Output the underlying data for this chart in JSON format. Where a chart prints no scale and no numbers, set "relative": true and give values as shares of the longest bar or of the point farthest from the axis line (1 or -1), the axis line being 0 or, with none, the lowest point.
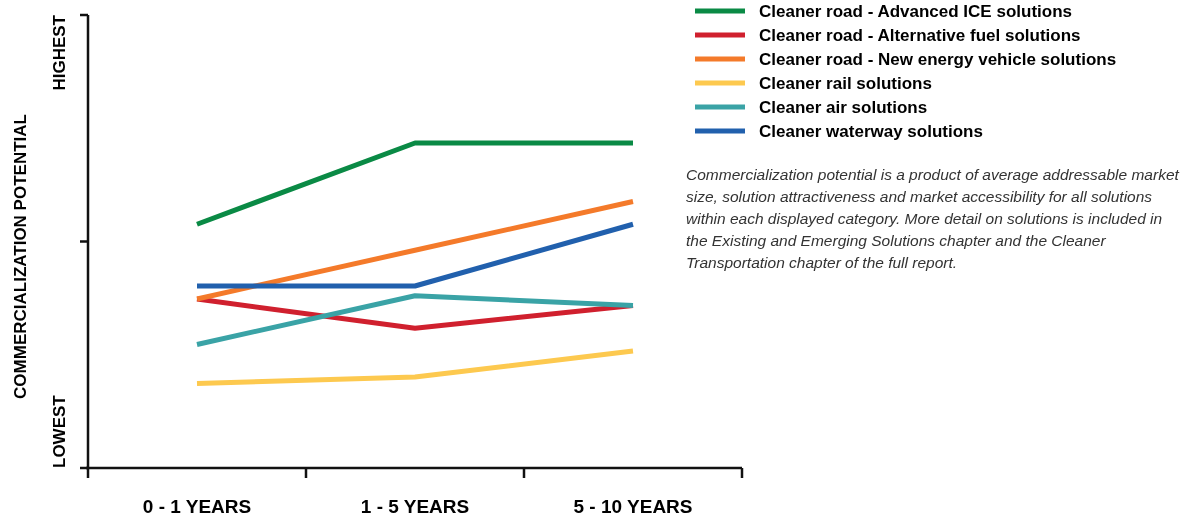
{
  "chart_data": {
    "type": "line",
    "relative": true,
    "ylabel": "COMMERCIALIZATION POTENTIAL",
    "categories": [
      "0 - 1 YEARS",
      "1 -  5 YEARS",
      "5 - 10 YEARS"
    ],
    "series": [
      {
        "name": "Cleaner road - Advanced ICE solutions",
        "color": "#0a8a45",
        "values": [
          0.75,
          1,
          1
        ]
      },
      {
        "name": "Cleaner road - Alternative fuel solutions",
        "color": "#d0202e",
        "values": [
          0.52,
          0.43,
          0.5
        ]
      },
      {
        "name": "Cleaner road - New energy vehicle solutions",
        "color": "#f47a2a",
        "values": [
          0.52,
          0.67,
          0.82
        ]
      },
      {
        "name": "Cleaner rail solutions",
        "color": "#fdc94f",
        "values": [
          0.26,
          0.28,
          0.36
        ]
      },
      {
        "name": "Cleaner air solutions",
        "color": "#3aa3a6",
        "values": [
          0.38,
          0.53,
          0.5
        ]
      },
      {
        "name": "Cleaner waterway solutions",
        "color": "#2160ad",
        "values": [
          0.56,
          0.56,
          0.75
        ]
      }
    ],
    "legend": "top right",
    "marker": "none",
    "line_style": "solid",
    "annotations": [
      "Commercialization potential is a product of average addressable market size, solution attractiveness and market accessibility for all solutions within each displayed category. More detail on solutions is included in the Existing and Emerging Solutions chapter and the Cleaner Transportation chapter of the full report.",
      "HIGHEST",
      "LOWEST"
    ]
  }
}
